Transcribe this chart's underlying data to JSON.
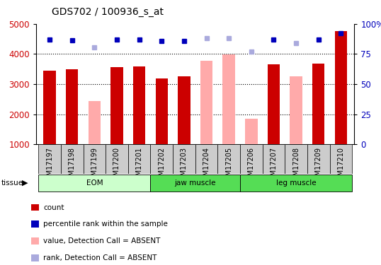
{
  "title": "GDS702 / 100936_s_at",
  "samples": [
    "GSM17197",
    "GSM17198",
    "GSM17199",
    "GSM17200",
    "GSM17201",
    "GSM17202",
    "GSM17203",
    "GSM17204",
    "GSM17205",
    "GSM17206",
    "GSM17207",
    "GSM17208",
    "GSM17209",
    "GSM17210"
  ],
  "count_values": [
    3450,
    3500,
    null,
    3560,
    3580,
    3200,
    3250,
    null,
    null,
    null,
    3650,
    null,
    3680,
    4750
  ],
  "absent_values": [
    null,
    null,
    2430,
    null,
    null,
    null,
    null,
    3780,
    3980,
    1860,
    null,
    3270,
    null,
    null
  ],
  "rank_present": [
    4470,
    4460,
    null,
    4470,
    4480,
    4430,
    4430,
    null,
    null,
    null,
    4490,
    null,
    4480,
    4680
  ],
  "rank_absent": [
    null,
    null,
    4220,
    null,
    null,
    null,
    null,
    4520,
    4520,
    4080,
    null,
    4370,
    null,
    null
  ],
  "ylim": [
    1000,
    5000
  ],
  "yticks_left": [
    1000,
    2000,
    3000,
    4000,
    5000
  ],
  "count_color": "#cc0000",
  "absent_color": "#ffaaaa",
  "rank_present_color": "#0000bb",
  "rank_absent_color": "#aaaadd",
  "eom_color": "#ccffcc",
  "jaw_color": "#55dd55",
  "leg_color": "#55dd55",
  "group_defs": [
    {
      "label": "EOM",
      "xstart": -0.5,
      "xend": 4.5,
      "color": "#ccffcc"
    },
    {
      "label": "jaw muscle",
      "xstart": 4.5,
      "xend": 8.5,
      "color": "#55dd55"
    },
    {
      "label": "leg muscle",
      "xstart": 8.5,
      "xend": 13.5,
      "color": "#55dd55"
    }
  ],
  "legend_items": [
    {
      "label": "count",
      "color": "#cc0000"
    },
    {
      "label": "percentile rank within the sample",
      "color": "#0000bb"
    },
    {
      "label": "value, Detection Call = ABSENT",
      "color": "#ffaaaa"
    },
    {
      "label": "rank, Detection Call = ABSENT",
      "color": "#aaaadd"
    }
  ],
  "title_fontsize": 10,
  "tick_fontsize": 7
}
